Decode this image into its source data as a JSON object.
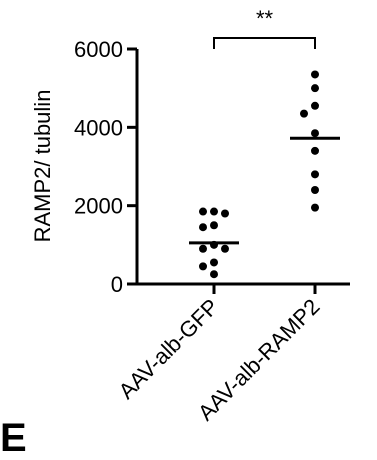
{
  "chart_data": {
    "type": "scatter",
    "ylabel": "RAMP2/ tubulin",
    "ylim": [
      0,
      6000
    ],
    "yticks": [
      0,
      2000,
      4000,
      6000
    ],
    "categories": [
      "AAV-alb-GFP",
      "AAV-alb-RAMP2"
    ],
    "series": [
      {
        "category": "AAV-alb-GFP",
        "points": [
          1850,
          1850,
          1800,
          1500,
          1450,
          1000,
          900,
          900,
          550,
          450,
          250
        ],
        "mean": 1050
      },
      {
        "category": "AAV-alb-RAMP2",
        "points": [
          5350,
          5000,
          4550,
          4350,
          3850,
          3400,
          2800,
          2400,
          1950
        ],
        "mean": 3720
      }
    ],
    "significance": {
      "between": [
        "AAV-alb-GFP",
        "AAV-alb-RAMP2"
      ],
      "label": "**"
    },
    "grid": false
  },
  "panel_letter": "E"
}
